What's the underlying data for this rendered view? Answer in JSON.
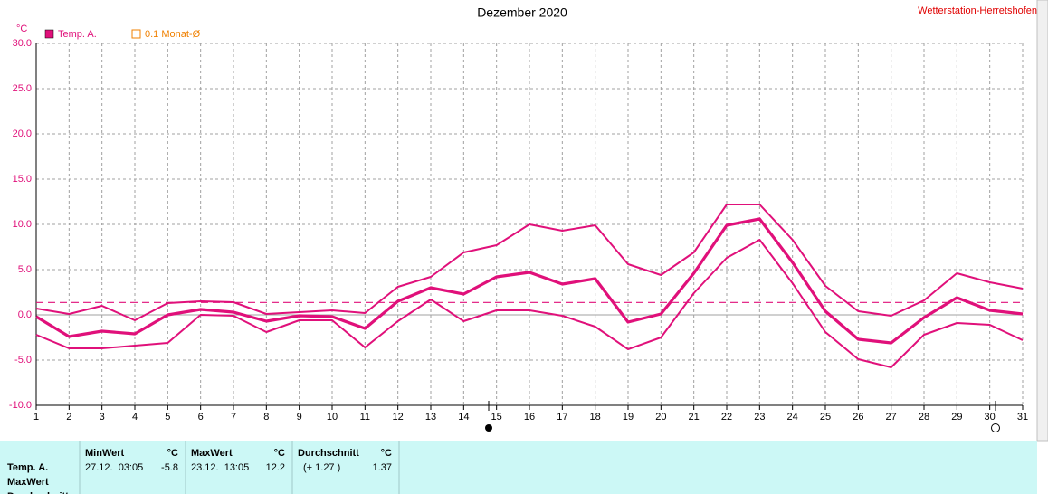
{
  "chart_data": {
    "type": "line",
    "title": "Dezember 2020",
    "station": "Wetterstation-Herretshofen",
    "y_label": "°C",
    "x": [
      1,
      2,
      3,
      4,
      5,
      6,
      7,
      8,
      9,
      10,
      11,
      12,
      13,
      14,
      15,
      16,
      17,
      18,
      19,
      20,
      21,
      22,
      23,
      24,
      25,
      26,
      27,
      28,
      29,
      30,
      31
    ],
    "series": [
      {
        "name": "Temp. A.",
        "color": "#e0107a",
        "values": [
          -0.2,
          -2.4,
          -1.8,
          -2.1,
          0.0,
          0.6,
          0.3,
          -0.7,
          -0.1,
          -0.2,
          -1.5,
          1.5,
          3.0,
          2.3,
          4.2,
          4.7,
          3.4,
          4.0,
          -0.8,
          0.1,
          4.6,
          9.9,
          10.6,
          5.8,
          0.4,
          -2.7,
          -3.1,
          -0.3,
          1.9,
          0.5,
          0.1
        ],
        "max": [
          0.7,
          0.1,
          1.0,
          -0.6,
          1.3,
          1.5,
          1.4,
          0.1,
          0.3,
          0.5,
          0.2,
          3.1,
          4.2,
          6.9,
          7.7,
          10.0,
          9.3,
          9.9,
          5.6,
          4.4,
          6.9,
          12.2,
          12.2,
          8.3,
          3.2,
          0.4,
          -0.1,
          1.6,
          4.6,
          3.6,
          2.9
        ],
        "min": [
          -2.2,
          -3.7,
          -3.7,
          -3.4,
          -3.1,
          0.0,
          -0.1,
          -1.9,
          -0.6,
          -0.6,
          -3.6,
          -0.7,
          1.7,
          -0.7,
          0.5,
          0.5,
          -0.1,
          -1.3,
          -3.8,
          -2.5,
          2.4,
          6.3,
          8.3,
          3.5,
          -1.9,
          -4.9,
          -5.8,
          -2.2,
          -0.9,
          -1.1,
          -2.8
        ]
      }
    ],
    "average_name": "0.1 Monat-Ø",
    "average_color": "#f08000",
    "average": 1.37,
    "xlim": [
      1,
      31
    ],
    "xticks": [
      1,
      2,
      3,
      4,
      5,
      6,
      7,
      8,
      9,
      10,
      11,
      12,
      13,
      14,
      15,
      16,
      17,
      18,
      19,
      20,
      21,
      22,
      23,
      24,
      25,
      26,
      27,
      28,
      29,
      30,
      31
    ],
    "ylim": [
      -10,
      30
    ],
    "yticks": [
      {
        "value": -10,
        "label": "-10.0"
      },
      {
        "value": -5,
        "label": "-5.0"
      },
      {
        "value": 0,
        "label": "0.0"
      },
      {
        "value": 5,
        "label": "5.0"
      },
      {
        "value": 10,
        "label": "10.0"
      },
      {
        "value": 15,
        "label": "15.0"
      },
      {
        "value": 20,
        "label": "20.0"
      },
      {
        "value": 25,
        "label": "25.0"
      },
      {
        "value": 30,
        "label": "30.0"
      }
    ],
    "grid": true
  },
  "table": {
    "row_labels": [
      "Temp. A.",
      "MaxWert",
      "Durchschnitt"
    ],
    "columns": [
      {
        "title": "MinWert",
        "unit": "°C",
        "time": "27.12.  03:05",
        "value": -5.8
      },
      {
        "title": "MaxWert",
        "unit": "°C",
        "time": "23.12.  13:05",
        "value": 12.2
      },
      {
        "title": "Durchschnitt",
        "unit": "°C",
        "time": "(+ 1.27 )",
        "value": 1.37
      }
    ]
  }
}
